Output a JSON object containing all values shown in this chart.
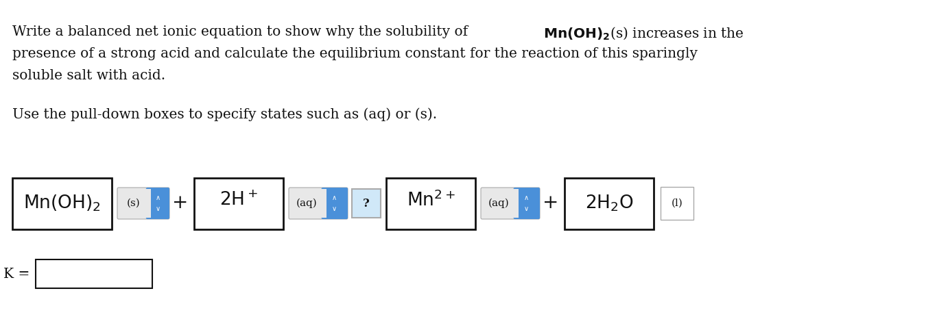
{
  "bg_color": "#ffffff",
  "title_line1": "Write a balanced net ionic equation to show why the solubility of ",
  "title_line1_bold": "Mn(OH)",
  "title_line1_bold_sub": "2",
  "title_line1_end": "(s) increases in the",
  "title_line2": "presence of a strong acid and calculate the equilibrium constant for the reaction of this sparingly",
  "title_line3": "soluble salt with acid.",
  "subtitle": "Use the pull-down boxes to specify states such as (aq) or (s).",
  "font_size_title": 14.5,
  "font_size_eq": 18,
  "font_size_small": 11,
  "box_edge": "#111111",
  "dropdown_blue": "#4a90d9",
  "dropdown_bg": "#f0f0f0",
  "text_color": "#111111"
}
